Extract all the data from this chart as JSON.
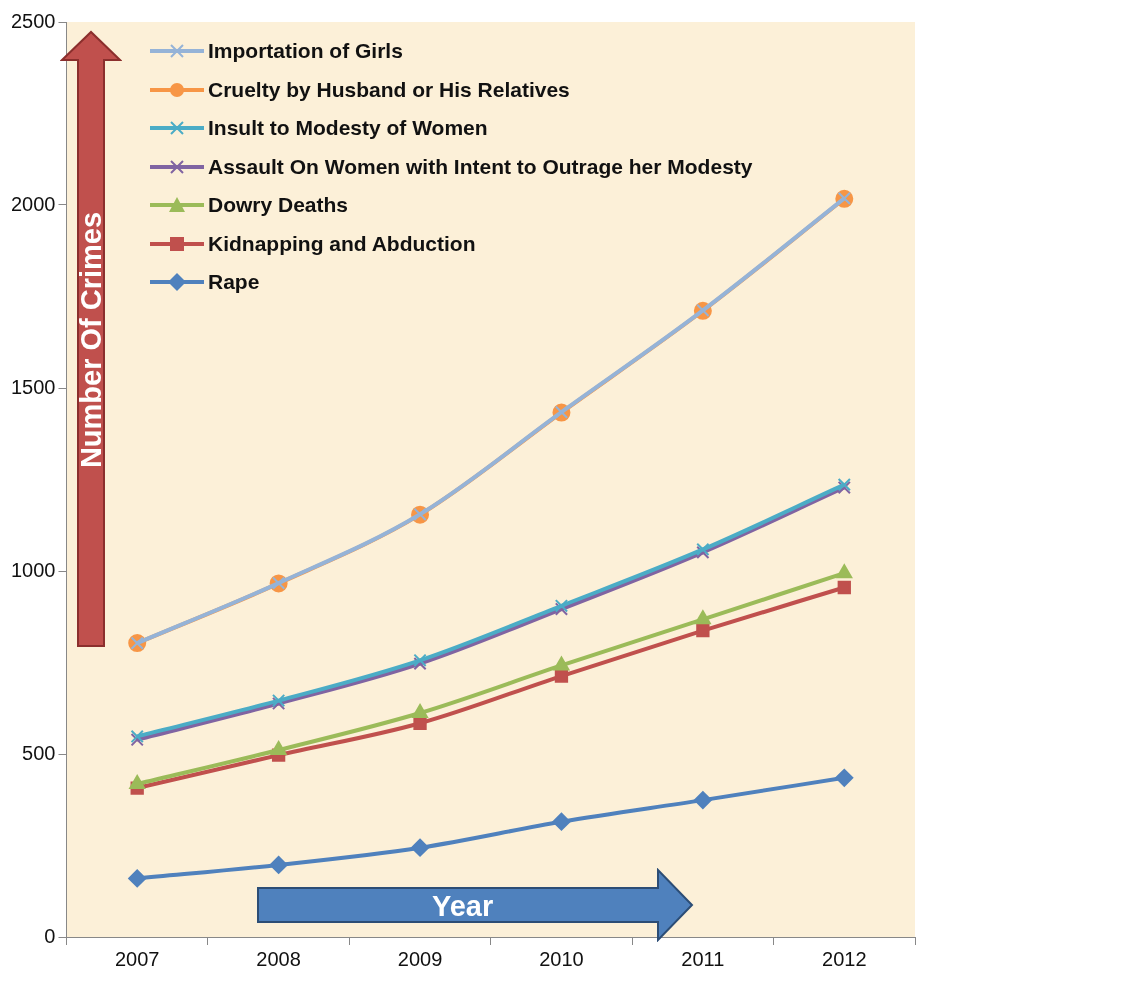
{
  "chart_data": {
    "type": "line",
    "xlabel": "Year",
    "ylabel": "Number Of Crimes",
    "categories": [
      "2007",
      "2008",
      "2009",
      "2010",
      "2011",
      "2012"
    ],
    "ylim": [
      0,
      2500
    ],
    "yticks": [
      0,
      500,
      1000,
      1500,
      2000,
      2500
    ],
    "grid": false,
    "legend": "top left",
    "series": [
      {
        "name": "Importation of Girls",
        "color": "#95b3d7",
        "marker": "cross",
        "values": [
          803,
          967,
          1155,
          1434,
          1712,
          2018
        ]
      },
      {
        "name": "Cruelty by Husband or His Relatives",
        "color": "#f79646",
        "marker": "circle",
        "values": [
          803,
          966,
          1154,
          1433,
          1711,
          2017
        ]
      },
      {
        "name": "Insult to Modesty of Women",
        "color": "#4bacc6",
        "marker": "cross",
        "values": [
          548,
          646,
          756,
          905,
          1059,
          1236
        ]
      },
      {
        "name": "Assault On Women with Intent to Outrage her Modesty",
        "color": "#8064a2",
        "marker": "cross",
        "values": [
          539,
          638,
          747,
          896,
          1051,
          1228
        ]
      },
      {
        "name": "Dowry Deaths",
        "color": "#9bbb59",
        "marker": "triangle",
        "values": [
          418,
          511,
          612,
          742,
          868,
          994
        ]
      },
      {
        "name": "Kidnapping and Abduction",
        "color": "#c0504d",
        "marker": "square",
        "values": [
          407,
          497,
          584,
          713,
          837,
          955
        ]
      },
      {
        "name": "Rape",
        "color": "#4f81bd",
        "marker": "diamond",
        "values": [
          160,
          197,
          244,
          315,
          374,
          435
        ]
      }
    ]
  }
}
